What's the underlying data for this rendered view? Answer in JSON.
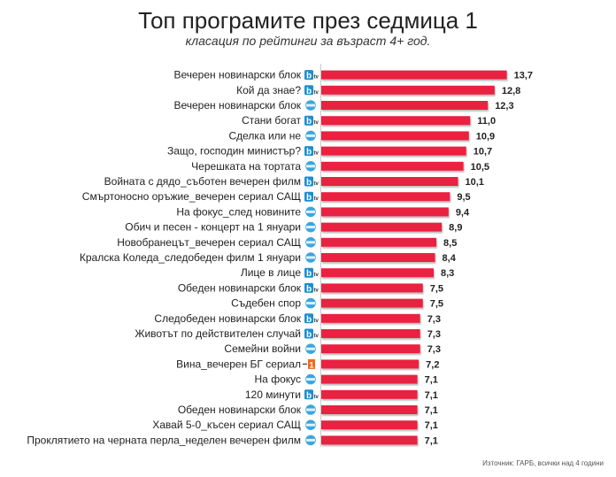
{
  "chart_data": {
    "type": "bar",
    "orientation": "horizontal",
    "title": "Топ програмите през седмица 1",
    "subtitle": "класация по рейтинги за възраст 4+ год.",
    "source": "Източник: ГАРБ, всички над 4 години",
    "xlabel": "",
    "ylabel": "",
    "xlim": [
      0,
      14
    ],
    "grid": false,
    "legend": "none",
    "bar_color": "#e8203f",
    "channels": {
      "btv": {
        "name": "bTV",
        "color": "#1a8fd0"
      },
      "nova": {
        "name": "Nova",
        "color": "#3aa6e0"
      },
      "ch1": {
        "name": "Канал 1",
        "color": "#f06a1a"
      }
    },
    "categories": [
      "Вечерен новинарски блок",
      "Кой да знае?",
      "Вечерен новинарски блок",
      "Стани богат",
      "Сделка или не",
      "Защо, господин министър?",
      "Черешката на тортата",
      "Войната с дядо_съботен вечерен филм",
      "Смъртоносно оръжие_вечерен сериал САЩ",
      "На фокус_след новините",
      "Обич и песен - концерт на 1 януари",
      "Новобранецът_вечерен сериал САЩ",
      "Кралска Коледа_следобеден филм 1 януари",
      "Лице в лице",
      "Обеден новинарски блок",
      "Съдебен спор",
      "Следобеден новинарски блок",
      "Животът по действителен случай",
      "Семейни войни",
      "Вина_вечерен БГ сериал",
      "На фокус",
      "120 минути",
      "Обеден новинарски блок",
      "Хавай 5-0_късен сериал САЩ",
      "Проклятието на черната перла_неделен вечерен филм"
    ],
    "channel_per_category": [
      "btv",
      "btv",
      "nova",
      "btv",
      "nova",
      "btv",
      "nova",
      "btv",
      "btv",
      "nova",
      "nova",
      "nova",
      "nova",
      "btv",
      "btv",
      "nova",
      "btv",
      "btv",
      "nova",
      "ch1",
      "nova",
      "btv",
      "nova",
      "nova",
      "nova"
    ],
    "values": [
      13.7,
      12.8,
      12.3,
      11.0,
      10.9,
      10.7,
      10.5,
      10.1,
      9.5,
      9.4,
      8.9,
      8.5,
      8.4,
      8.3,
      7.5,
      7.5,
      7.3,
      7.3,
      7.3,
      7.2,
      7.1,
      7.1,
      7.1,
      7.1,
      7.1
    ],
    "value_labels": [
      "13,7",
      "12,8",
      "12,3",
      "11,0",
      "10,9",
      "10,7",
      "10,5",
      "10,1",
      "9,5",
      "9,4",
      "8,9",
      "8,5",
      "8,4",
      "8,3",
      "7,5",
      "7,5",
      "7,3",
      "7,3",
      "7,3",
      "7,2",
      "7,1",
      "7,1",
      "7,1",
      "7,1",
      "7,1"
    ]
  }
}
